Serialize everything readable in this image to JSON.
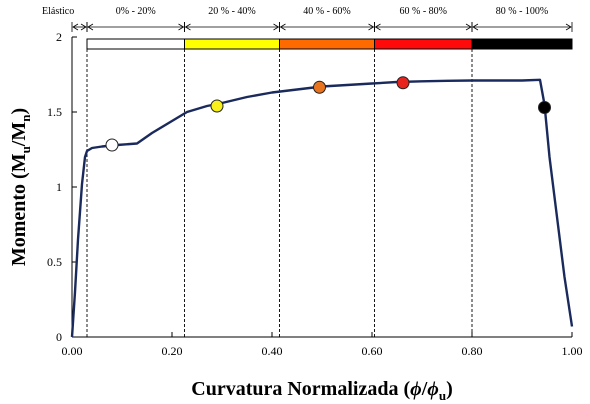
{
  "chart_data": {
    "type": "line",
    "xlim": [
      0,
      1
    ],
    "ylim": [
      0,
      2
    ],
    "xticks": [
      "0.00",
      "0.20",
      "0.40",
      "0.60",
      "0.80",
      "1.00"
    ],
    "yticks": [
      "0",
      "0.5",
      "1",
      "1.5",
      "2"
    ],
    "xlabel_main": "Curvatura Normalizada (",
    "xlabel_phi1": "ϕ",
    "xlabel_slash": "/",
    "xlabel_phi2": "ϕ",
    "xlabel_sub": "u",
    "xlabel_close": ")",
    "ylabel_main": "Momento (M",
    "ylabel_sub1": "u",
    "ylabel_slash": "/M",
    "ylabel_sub2": "n",
    "ylabel_close": ")",
    "series": [
      {
        "line_color": "#1a2a5c",
        "x": [
          0.0,
          0.006,
          0.012,
          0.02,
          0.026,
          0.03,
          0.04,
          0.06,
          0.09,
          0.13,
          0.16,
          0.2,
          0.23,
          0.27,
          0.3,
          0.35,
          0.4,
          0.45,
          0.5,
          0.55,
          0.6,
          0.65,
          0.7,
          0.75,
          0.8,
          0.85,
          0.9,
          0.936,
          0.945,
          0.955,
          0.97,
          0.985,
          1.0
        ],
        "y": [
          0.0,
          0.3,
          0.65,
          1.02,
          1.2,
          1.24,
          1.26,
          1.27,
          1.28,
          1.29,
          1.36,
          1.44,
          1.5,
          1.54,
          1.56,
          1.6,
          1.63,
          1.65,
          1.67,
          1.68,
          1.69,
          1.7,
          1.705,
          1.708,
          1.71,
          1.71,
          1.71,
          1.715,
          1.55,
          1.2,
          0.8,
          0.4,
          0.07
        ]
      }
    ],
    "guide_lines_x": [
      0.03,
      0.225,
      0.415,
      0.605,
      0.8
    ],
    "markers": [
      {
        "x": 0.08,
        "y": 1.28,
        "color": "#ffffff"
      },
      {
        "x": 0.29,
        "y": 1.54,
        "color": "#f7f01a"
      },
      {
        "x": 0.495,
        "y": 1.665,
        "color": "#e8741f"
      },
      {
        "x": 0.662,
        "y": 1.695,
        "color": "#e8231e"
      },
      {
        "x": 0.945,
        "y": 1.53,
        "color": "#000000"
      }
    ],
    "bands": [
      {
        "label": "Elástico",
        "x0": 0.0,
        "x1": 0.03,
        "color": null
      },
      {
        "label": "0% - 20%",
        "x0": 0.03,
        "x1": 0.225,
        "color": "#ffffff"
      },
      {
        "label": "20 % - 40%",
        "x0": 0.225,
        "x1": 0.415,
        "color": "#ffff00"
      },
      {
        "label": "40 % - 60%",
        "x0": 0.415,
        "x1": 0.605,
        "color": "#ff6a00"
      },
      {
        "label": "60 % - 80%",
        "x0": 0.605,
        "x1": 0.8,
        "color": "#ff0a0a"
      },
      {
        "label": "80 % - 100%",
        "x0": 0.8,
        "x1": 1.0,
        "color": "#000000"
      }
    ],
    "grid": false,
    "legend": "none"
  }
}
